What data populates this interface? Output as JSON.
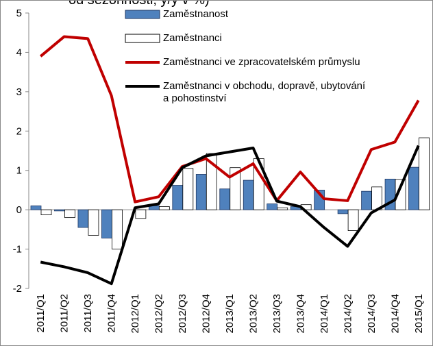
{
  "chart_data": {
    "type": "bar",
    "title": "od sezónnosti, y/y v %)",
    "categories": [
      "2011/Q1",
      "2011/Q2",
      "2011/Q3",
      "2011/Q4",
      "2012/Q1",
      "2012/Q2",
      "2012/Q3",
      "2012/Q4",
      "2013/Q1",
      "2013/Q2",
      "2013/Q3",
      "2013/Q4",
      "2014/Q1",
      "2014/Q2",
      "2014/Q3",
      "2014/Q4",
      "2015/Q1"
    ],
    "series": [
      {
        "name": "Zaměstnanost",
        "kind": "bar",
        "color": "#4f81bd",
        "values": [
          0.1,
          -0.03,
          -0.45,
          -0.72,
          0.0,
          0.1,
          0.62,
          0.9,
          0.53,
          0.75,
          0.15,
          0.08,
          0.5,
          -0.1,
          0.47,
          0.78,
          1.08
        ]
      },
      {
        "name": "Zaměstnanci",
        "kind": "bar",
        "color": "#ffffff",
        "values": [
          -0.13,
          -0.2,
          -0.65,
          -1.0,
          -0.22,
          0.08,
          1.05,
          1.43,
          1.07,
          1.3,
          0.05,
          0.13,
          0.0,
          -0.53,
          0.58,
          0.77,
          1.83
        ]
      },
      {
        "name": "Zaměstnanci ve zpracovatelském průmyslu",
        "kind": "line",
        "color": "#c00000",
        "values": [
          3.9,
          4.4,
          4.35,
          2.9,
          0.2,
          0.33,
          1.1,
          1.3,
          0.83,
          1.17,
          0.23,
          0.96,
          0.28,
          0.23,
          1.53,
          1.72,
          2.78
        ]
      },
      {
        "name": "Zaměstnanci v obchodu, dopravě, ubytování\na pohostinství",
        "kind": "line",
        "color": "#000000",
        "values": [
          -1.33,
          -1.45,
          -1.6,
          -1.88,
          0.05,
          0.15,
          1.07,
          1.37,
          1.47,
          1.57,
          0.22,
          0.08,
          -0.45,
          -0.93,
          -0.08,
          0.25,
          1.63
        ]
      }
    ],
    "ylim": [
      -2,
      5
    ],
    "yticks": [
      -2,
      -1,
      0,
      1,
      2,
      3,
      4,
      5
    ]
  }
}
